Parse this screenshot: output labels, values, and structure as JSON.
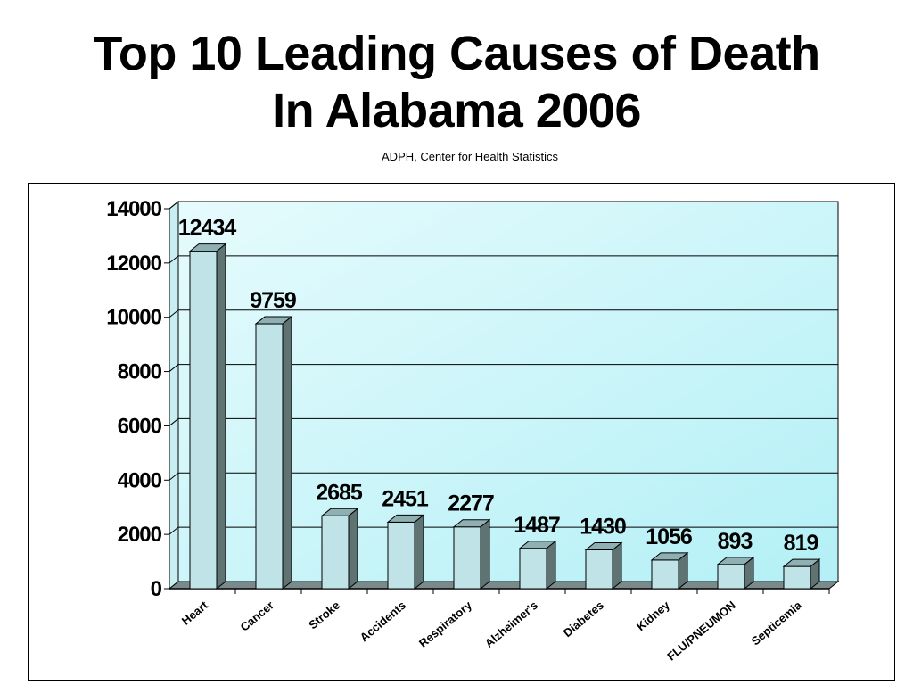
{
  "chart_data": {
    "type": "bar",
    "title_lines": [
      "Top 10 Leading Causes of Death",
      "In Alabama 2006"
    ],
    "subtitle": "ADPH, Center for Health Statistics",
    "categories": [
      "Heart",
      "Cancer",
      "Stroke",
      "Accidents",
      "Respiratory",
      "Alzheimer's",
      "Diabetes",
      "Kidney",
      "FLU/PNEUMON",
      "Septicemia"
    ],
    "values": [
      12434,
      9759,
      2685,
      2451,
      2277,
      1487,
      1430,
      1056,
      893,
      819
    ],
    "ylim": [
      0,
      14000
    ],
    "yticks": [
      0,
      2000,
      4000,
      6000,
      8000,
      10000,
      12000,
      14000
    ],
    "grid": true,
    "legend": "none",
    "colors": {
      "bar_front": "#bfe3e6",
      "bar_side": "#5f7373",
      "bar_top": "#8fb0b3",
      "plot_bg_top": "#e6fbfd",
      "plot_bg_bottom": "#b3f0f6",
      "gridline": "#000000"
    }
  }
}
